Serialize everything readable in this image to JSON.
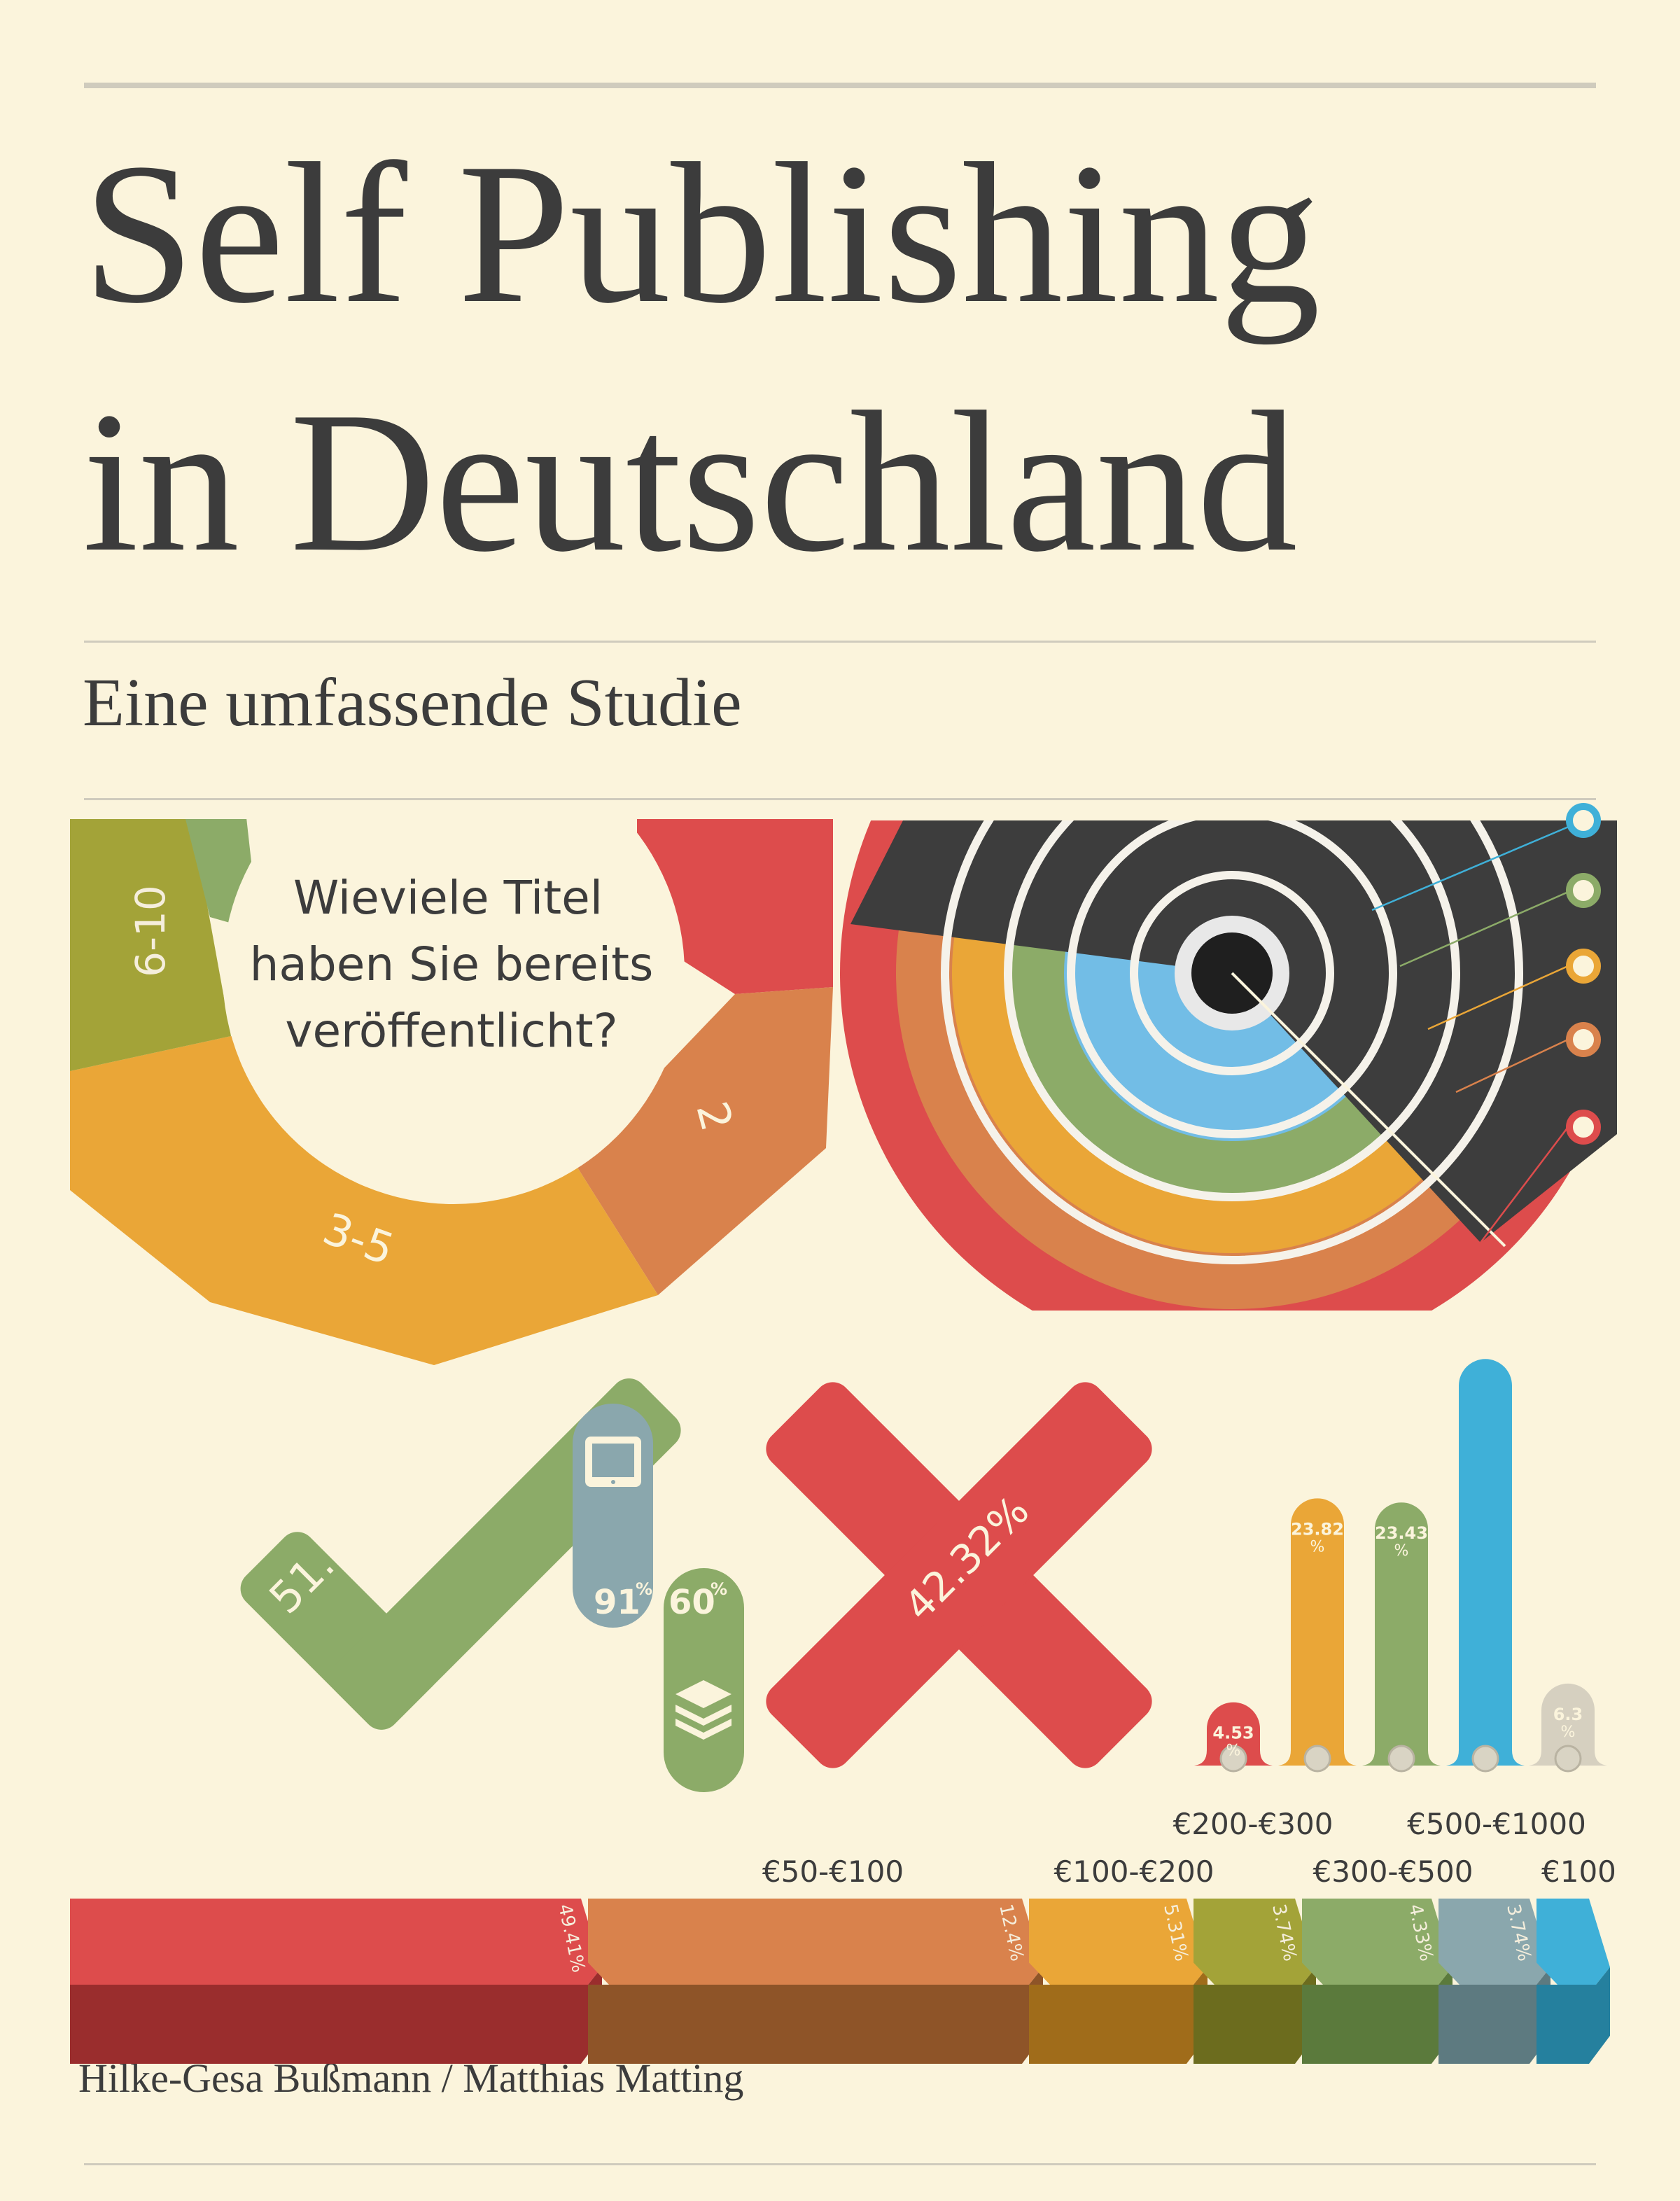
{
  "cover": {
    "title_line1": "Self Publishing",
    "title_line2": "in Deutschland",
    "subtitle": "Eine umfassende Studie",
    "authors": "Hilke-Gesa Bußmann / Matthias Matting"
  },
  "donut": {
    "question_lines": [
      "Wieviele Titel",
      "haben Sie bereits",
      "veröffentlicht?"
    ],
    "segment_labels": {
      "six_ten": "6-10",
      "three_five": "3-5",
      "two": "2"
    },
    "colors": {
      "red": "#dd4c4c",
      "orange": "#d9824c",
      "amber": "#eaa637",
      "olive": "#a3a338",
      "green": "#8cab68"
    }
  },
  "check": {
    "value": "51.57%",
    "color": "#8cab68"
  },
  "cross": {
    "value": "42.32%",
    "color": "#dd4c4c"
  },
  "devices": {
    "tablet_value": "91",
    "tablet_unit": "%",
    "tablet_icon": "tablet-icon",
    "tablet_color": "#8aa7ad",
    "stack_value": "60",
    "stack_unit": "%",
    "stack_icon": "layers-icon",
    "stack_color": "#8cab68"
  },
  "thermometers": [
    {
      "value": "4.53",
      "unit": "%",
      "level": 4.53,
      "color": "#dd4c4c"
    },
    {
      "value": "23.82",
      "unit": "%",
      "level": 23.82,
      "color": "#eaa637"
    },
    {
      "value": "23.43",
      "unit": "%",
      "level": 23.43,
      "color": "#8cab68"
    },
    {
      "value": "",
      "unit": "",
      "level": 37.0,
      "color": "#3fb0d8"
    },
    {
      "value": "6.3",
      "unit": "%",
      "level": 6.3,
      "color": "#d6d0c0"
    }
  ],
  "price_bars": {
    "upper_labels": [
      "€200-€300",
      "€500-€1000"
    ],
    "lower_labels": [
      "€50-€100",
      "€100-€200",
      "€300-€500",
      "€100"
    ],
    "segments": [
      {
        "value": "49.41%",
        "color": "#dd4c4c",
        "shadow": "#9a2d2d"
      },
      {
        "value": "12.4%",
        "color": "#d9824c",
        "shadow": "#8e5428"
      },
      {
        "value": "5.31%",
        "color": "#eaa637",
        "shadow": "#a06c1a"
      },
      {
        "value": "3.74%",
        "color": "#a3a338",
        "shadow": "#6c6c1e"
      },
      {
        "value": "4.33%",
        "color": "#8cab68",
        "shadow": "#5b7a3c"
      },
      {
        "value": "3.74%",
        "color": "#8aa7ad",
        "shadow": "#5d7a80"
      },
      {
        "value": "",
        "color": "#3fb0d8",
        "shadow": "#25809e"
      }
    ]
  }
}
